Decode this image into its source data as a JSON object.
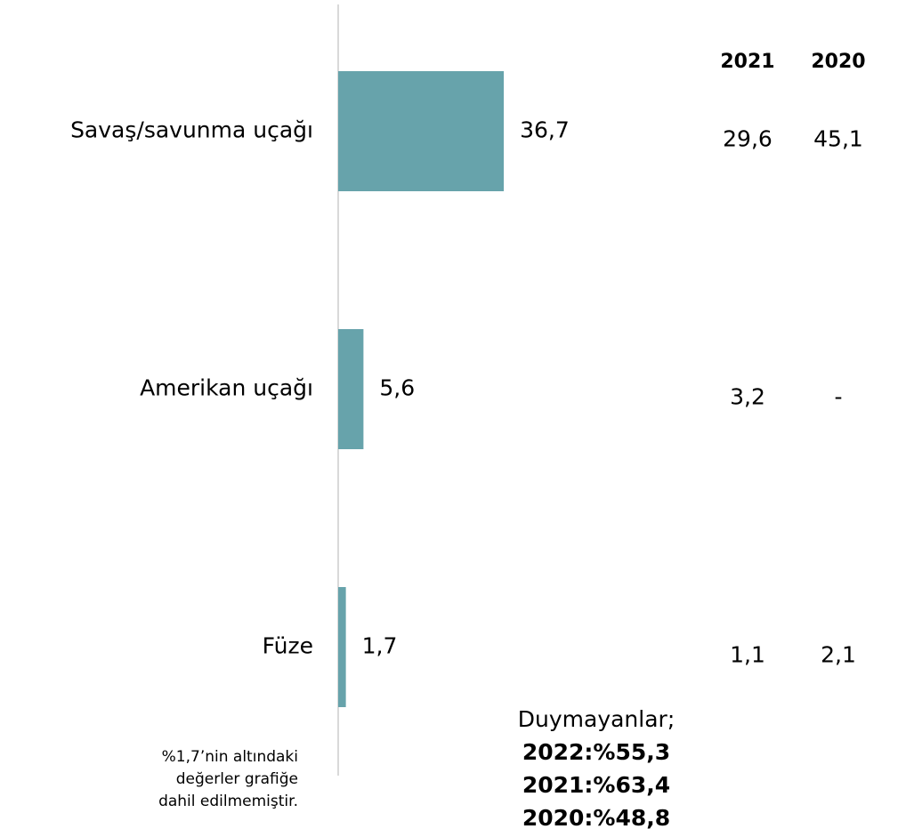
{
  "chart_data": {
    "type": "bar",
    "orientation": "horizontal",
    "categories": [
      "Savaş/savunma uçağı",
      "Amerikan uçağı",
      "Füze"
    ],
    "values": [
      36.7,
      5.6,
      1.7
    ],
    "value_labels": [
      "36,7",
      "5,6",
      "1,7"
    ],
    "color": "#67a3ab",
    "comparison": {
      "headers": [
        "2021",
        "2020"
      ],
      "rows": [
        [
          "29,6",
          "45,1"
        ],
        [
          "3,2",
          "-"
        ],
        [
          "1,1",
          "2,1"
        ]
      ]
    },
    "annotation": {
      "title": "Duymayanlar;",
      "lines": [
        "2022:%55,3",
        "2021:%63,4",
        "2020:%48,8"
      ]
    },
    "footnote": [
      "%1,7’nin altındaki",
      "değerler grafiğe",
      "dahil edilmemiştir."
    ]
  }
}
